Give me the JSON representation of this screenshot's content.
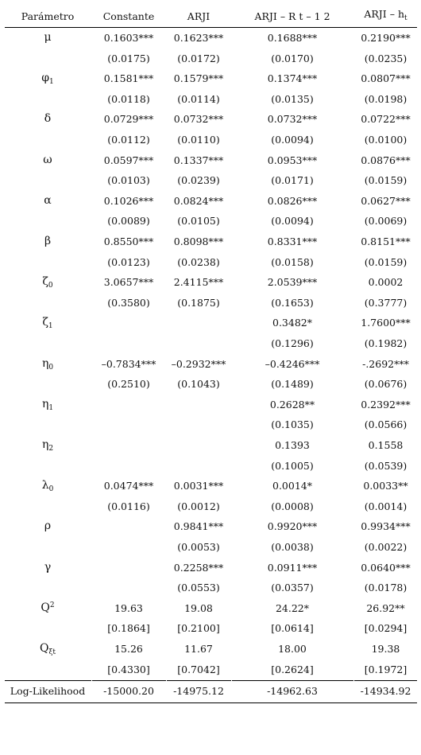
{
  "header": {
    "parametro": "Parámetro",
    "constante": "Constante",
    "arji": "ARJI",
    "arji_r": "ARJI  – R  t – 1  2",
    "arji_h_main": "ARJI – h",
    "arji_h_sub": "t"
  },
  "rows": [
    {
      "sym": "μ",
      "sub": "",
      "sup": "",
      "coef": [
        "0.1603***",
        "0.1623***",
        "0.1688***",
        "0.2190***"
      ],
      "se": [
        "(0.0175)",
        "(0.0172)",
        "(0.0170)",
        "(0.0235)"
      ]
    },
    {
      "sym": "φ",
      "sub": "1",
      "sup": "",
      "coef": [
        "0.1581***",
        "0.1579***",
        "0.1374***",
        "0.0807***"
      ],
      "se": [
        "(0.0118)",
        "(0.0114)",
        "(0.0135)",
        "(0.0198)"
      ]
    },
    {
      "sym": "δ",
      "sub": "",
      "sup": "",
      "coef": [
        "0.0729***",
        "0.0732***",
        "0.0732***",
        "0.0722***"
      ],
      "se": [
        "(0.0112)",
        "(0.0110)",
        "(0.0094)",
        "(0.0100)"
      ]
    },
    {
      "sym": "ω",
      "sub": "",
      "sup": "",
      "coef": [
        "0.0597***",
        "0.1337***",
        "0.0953***",
        "0.0876***"
      ],
      "se": [
        "(0.0103)",
        "(0.0239)",
        "(0.0171)",
        "(0.0159)"
      ]
    },
    {
      "sym": "α",
      "sub": "",
      "sup": "",
      "coef": [
        "0.1026***",
        "0.0824***",
        "0.0826***",
        "0.0627***"
      ],
      "se": [
        "(0.0089)",
        "(0.0105)",
        "(0.0094)",
        "(0.0069)"
      ]
    },
    {
      "sym": "β",
      "sub": "",
      "sup": "",
      "coef": [
        "0.8550***",
        "0.8098***",
        "0.8331***",
        "0.8151***"
      ],
      "se": [
        "(0.0123)",
        "(0.0238)",
        "(0.0158)",
        "(0.0159)"
      ]
    },
    {
      "sym": "ζ",
      "sub": "0",
      "sup": "",
      "coef": [
        "3.0657***",
        "2.4115***",
        "2.0539***",
        "0.0002"
      ],
      "se": [
        "(0.3580)",
        "(0.1875)",
        "(0.1653)",
        "(0.3777)"
      ]
    },
    {
      "sym": "ζ",
      "sub": "1",
      "sup": "",
      "coef": [
        "",
        "",
        "0.3482*",
        "1.7600***"
      ],
      "se": [
        "",
        "",
        "(0.1296)",
        "(0.1982)"
      ]
    },
    {
      "sym": "η",
      "sub": "0",
      "sup": "",
      "coef": [
        "–0.7834***",
        "–0.2932***",
        "–0.4246***",
        "-.2692***"
      ],
      "se": [
        "(0.2510)",
        "(0.1043)",
        "(0.1489)",
        "(0.0676)"
      ]
    },
    {
      "sym": "η",
      "sub": "1",
      "sup": "",
      "coef": [
        "",
        "",
        "0.2628**",
        "0.2392***"
      ],
      "se": [
        "",
        "",
        "(0.1035)",
        "(0.0566)"
      ]
    },
    {
      "sym": "η",
      "sub": "2",
      "sup": "",
      "coef": [
        "",
        "",
        "0.1393",
        "0.1558"
      ],
      "se": [
        "",
        "",
        "(0.1005)",
        "(0.0539)"
      ]
    },
    {
      "sym": "λ",
      "sub": "0",
      "sup": "",
      "coef": [
        "0.0474***",
        "0.0031***",
        "0.0014*",
        "0.0033**"
      ],
      "se": [
        "(0.0116)",
        "(0.0012)",
        "(0.0008)",
        "(0.0014)"
      ]
    },
    {
      "sym": "ρ",
      "sub": "",
      "sup": "",
      "coef": [
        "",
        "0.9841***",
        "0.9920***",
        "0.9934***"
      ],
      "se": [
        "",
        "(0.0053)",
        "(0.0038)",
        "(0.0022)"
      ]
    },
    {
      "sym": "γ",
      "sub": "",
      "sup": "",
      "coef": [
        "",
        "0.2258***",
        "0.0911***",
        "0.0640***"
      ],
      "se": [
        "",
        "(0.0553)",
        "(0.0357)",
        "(0.0178)"
      ]
    },
    {
      "sym": "Q",
      "sub": "",
      "sup": "2",
      "coef": [
        "19.63",
        "19.08",
        "24.22*",
        "26.92**"
      ],
      "se": [
        "[0.1864]",
        "[0.2100]",
        "[0.0614]",
        "[0.0294]"
      ]
    },
    {
      "sym": "Q",
      "sub": "ξt",
      "sup": "",
      "coef": [
        "15.26",
        "11.67",
        "18.00",
        "19.38"
      ],
      "se": [
        "[0.4330]",
        "[0.7042]",
        "[0.2624]",
        "[0.1972]"
      ]
    }
  ],
  "loglik": {
    "label": "Log-Likelihood",
    "values": [
      "-15000.20",
      "-14975.12",
      "-14962.63",
      "-14934.92"
    ]
  }
}
